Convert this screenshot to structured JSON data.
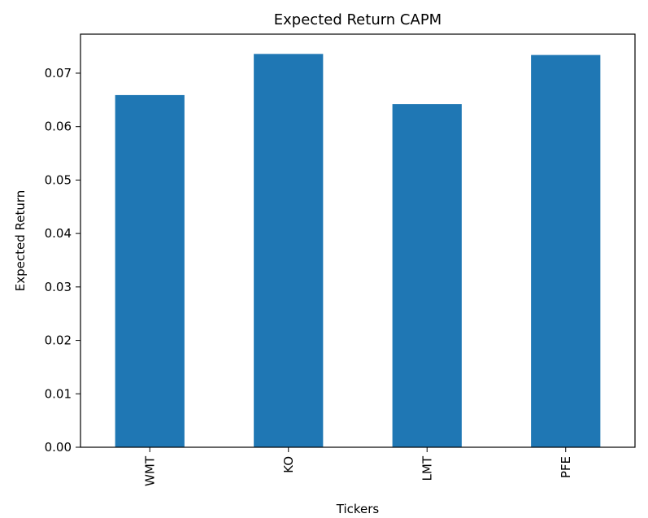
{
  "chart_data": {
    "type": "bar",
    "title": "Expected Return CAPM",
    "xlabel": "Tickers",
    "ylabel": "Expected Return",
    "categories": [
      "WMT",
      "KO",
      "LMT",
      "PFE"
    ],
    "values": [
      0.0659,
      0.0736,
      0.0642,
      0.0734
    ],
    "ylim": [
      0,
      0.0773
    ],
    "yticks": [
      "0.00",
      "0.01",
      "0.02",
      "0.03",
      "0.04",
      "0.05",
      "0.06",
      "0.07"
    ],
    "grid": false,
    "legend": "none",
    "bar_color": "#1f77b4"
  }
}
